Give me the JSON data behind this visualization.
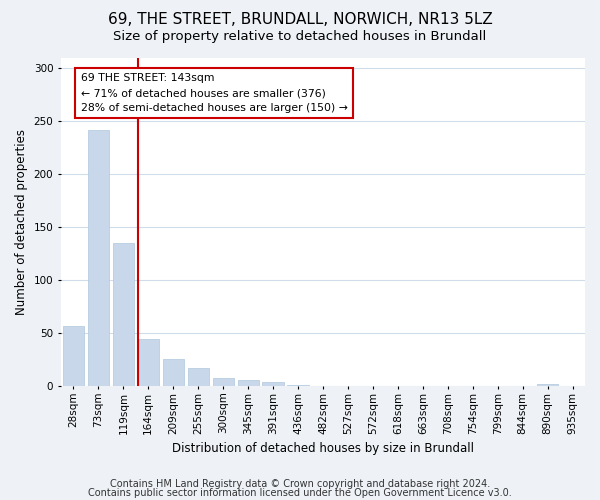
{
  "title": "69, THE STREET, BRUNDALL, NORWICH, NR13 5LZ",
  "subtitle": "Size of property relative to detached houses in Brundall",
  "xlabel": "Distribution of detached houses by size in Brundall",
  "ylabel": "Number of detached properties",
  "bar_values": [
    57,
    242,
    135,
    44,
    25,
    17,
    8,
    6,
    4,
    1,
    0,
    0,
    0,
    0,
    0,
    0,
    0,
    0,
    0,
    2,
    0
  ],
  "bar_labels": [
    "28sqm",
    "73sqm",
    "119sqm",
    "164sqm",
    "209sqm",
    "255sqm",
    "300sqm",
    "345sqm",
    "391sqm",
    "436sqm",
    "482sqm",
    "527sqm",
    "572sqm",
    "618sqm",
    "663sqm",
    "708sqm",
    "754sqm",
    "799sqm",
    "844sqm",
    "890sqm",
    "935sqm"
  ],
  "bar_color": "#c8d8ea",
  "bar_edge_color": "#aec8de",
  "vline_color": "#cc0000",
  "vline_x": 2.58,
  "annotation_text": "69 THE STREET: 143sqm\n← 71% of detached houses are smaller (376)\n28% of semi-detached houses are larger (150) →",
  "annotation_box_edgecolor": "#cc0000",
  "annotation_box_facecolor": "white",
  "ylim": [
    0,
    310
  ],
  "yticks": [
    0,
    50,
    100,
    150,
    200,
    250,
    300
  ],
  "footer_line1": "Contains HM Land Registry data © Crown copyright and database right 2024.",
  "footer_line2": "Contains public sector information licensed under the Open Government Licence v3.0.",
  "background_color": "#eef2f7",
  "plot_bg_color": "#ffffff",
  "grid_color": "#d0dcea",
  "title_fontsize": 11,
  "subtitle_fontsize": 9.5,
  "axis_label_fontsize": 8.5,
  "tick_fontsize": 7.5,
  "footer_fontsize": 7
}
